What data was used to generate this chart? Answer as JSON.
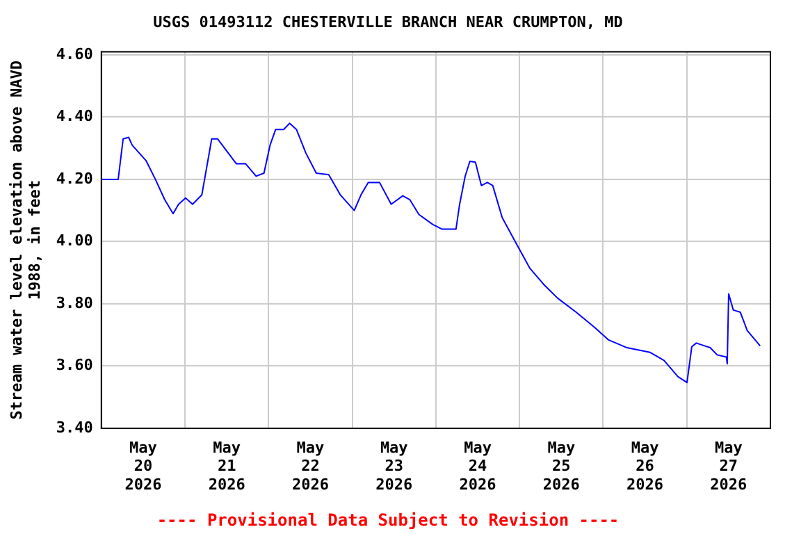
{
  "chart_data": {
    "type": "line",
    "title": "USGS 01493112 CHESTERVILLE BRANCH NEAR CRUMPTON, MD",
    "ylabel": "Stream water level elevation above NAVD 1988, in feet",
    "annotations": [
      "---- Provisional Data Subject to Revision ----"
    ],
    "x": [
      "2026-05-20T00:00",
      "2026-05-20T04:50",
      "2026-05-20T06:15",
      "2026-05-20T07:50",
      "2026-05-20T08:50",
      "2026-05-20T12:50",
      "2026-05-20T15:30",
      "2026-05-20T18:10",
      "2026-05-20T20:35",
      "2026-05-20T22:10",
      "2026-05-21T00:10",
      "2026-05-21T02:10",
      "2026-05-21T04:50",
      "2026-05-21T06:20",
      "2026-05-21T07:40",
      "2026-05-21T09:20",
      "2026-05-21T14:45",
      "2026-05-21T17:25",
      "2026-05-21T20:25",
      "2026-05-21T22:40",
      "2026-05-22T00:25",
      "2026-05-22T02:00",
      "2026-05-22T04:20",
      "2026-05-22T06:00",
      "2026-05-22T08:00",
      "2026-05-22T10:40",
      "2026-05-22T13:40",
      "2026-05-22T17:15",
      "2026-05-22T20:35",
      "2026-05-23T00:35",
      "2026-05-23T02:30",
      "2026-05-23T04:35",
      "2026-05-23T07:50",
      "2026-05-23T11:10",
      "2026-05-23T14:30",
      "2026-05-23T16:30",
      "2026-05-23T19:08",
      "2026-05-23T23:07",
      "2026-05-24T01:48",
      "2026-05-24T05:46",
      "2026-05-24T06:49",
      "2026-05-24T08:24",
      "2026-05-24T09:45",
      "2026-05-24T11:21",
      "2026-05-24T13:03",
      "2026-05-24T14:46",
      "2026-05-24T16:19",
      "2026-05-24T19:02",
      "2026-05-24T23:01",
      "2026-05-25T02:59",
      "2026-05-25T06:58",
      "2026-05-25T10:57",
      "2026-05-25T16:15",
      "2026-05-25T21:35",
      "2026-05-26T01:34",
      "2026-05-26T06:50",
      "2026-05-26T13:29",
      "2026-05-26T17:28",
      "2026-05-26T21:27",
      "2026-05-27T00:04",
      "2026-05-27T01:26",
      "2026-05-27T02:44",
      "2026-05-27T06:43",
      "2026-05-27T08:43",
      "2026-05-27T11:22",
      "2026-05-27T11:37",
      "2026-05-27T12:01",
      "2026-05-27T13:22",
      "2026-05-27T15:22",
      "2026-05-27T17:21",
      "2026-05-27T21:03"
    ],
    "series": [
      {
        "color": "#0000ff",
        "values": [
          4.2,
          4.2,
          4.33,
          4.335,
          4.31,
          4.26,
          4.2,
          4.135,
          4.09,
          4.12,
          4.14,
          4.12,
          4.15,
          4.245,
          4.33,
          4.33,
          4.25,
          4.25,
          4.21,
          4.22,
          4.31,
          4.36,
          4.36,
          4.38,
          4.36,
          4.285,
          4.22,
          4.215,
          4.15,
          4.1,
          4.15,
          4.19,
          4.19,
          4.12,
          4.147,
          4.135,
          4.087,
          4.055,
          4.04,
          4.04,
          4.12,
          4.21,
          4.258,
          4.255,
          4.18,
          4.19,
          4.18,
          4.077,
          3.995,
          3.914,
          3.862,
          3.818,
          3.773,
          3.724,
          3.684,
          3.659,
          3.644,
          3.618,
          3.566,
          3.547,
          3.662,
          3.674,
          3.659,
          3.636,
          3.629,
          3.607,
          3.832,
          3.78,
          3.773,
          3.714,
          3.665
        ]
      }
    ],
    "xlim": [
      "2026-05-20T00:00",
      "2026-05-28T00:00"
    ],
    "xticks": [
      {
        "value": "2026-05-20T00:00",
        "label": null
      },
      {
        "value": "2026-05-20T12:00",
        "label": "May 20 2026"
      },
      {
        "value": "2026-05-21T00:00",
        "label": null
      },
      {
        "value": "2026-05-21T12:00",
        "label": "May 21 2026"
      },
      {
        "value": "2026-05-22T00:00",
        "label": null
      },
      {
        "value": "2026-05-22T12:00",
        "label": "May 22 2026"
      },
      {
        "value": "2026-05-23T00:00",
        "label": null
      },
      {
        "value": "2026-05-23T12:00",
        "label": "May 23 2026"
      },
      {
        "value": "2026-05-24T00:00",
        "label": null
      },
      {
        "value": "2026-05-24T12:00",
        "label": "May 24 2026"
      },
      {
        "value": "2026-05-25T00:00",
        "label": null
      },
      {
        "value": "2026-05-25T12:00",
        "label": "May 25 2026"
      },
      {
        "value": "2026-05-26T00:00",
        "label": null
      },
      {
        "value": "2026-05-26T12:00",
        "label": "May 26 2026"
      },
      {
        "value": "2026-05-27T00:00",
        "label": null
      },
      {
        "value": "2026-05-27T12:00",
        "label": "May 27 2026"
      },
      {
        "value": "2026-05-28T00:00",
        "label": null
      }
    ],
    "ylim": [
      3.4,
      4.61
    ],
    "yticks": [
      {
        "value": 3.4,
        "label": "3.40"
      },
      {
        "value": 3.6,
        "label": "3.60"
      },
      {
        "value": 3.8,
        "label": "3.80"
      },
      {
        "value": 4.0,
        "label": "4.00"
      },
      {
        "value": 4.2,
        "label": "4.20"
      },
      {
        "value": 4.4,
        "label": "4.40"
      },
      {
        "value": 4.6,
        "label": "4.60"
      }
    ],
    "grid": true,
    "legend": false,
    "marker": "none",
    "line_style": "solid"
  }
}
